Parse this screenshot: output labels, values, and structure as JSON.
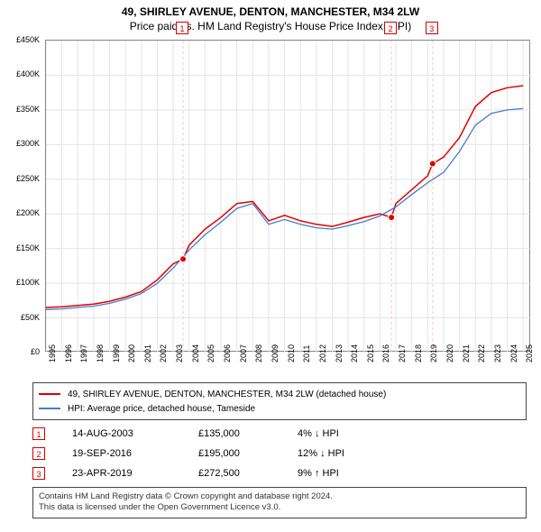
{
  "title_line1": "49, SHIRLEY AVENUE, DENTON, MANCHESTER, M34 2LW",
  "title_line2": "Price paid vs. HM Land Registry's House Price Index (HPI)",
  "chart": {
    "type": "line",
    "background_color": "#ffffff",
    "grid_color": "#e5e5e5",
    "border_color": "#888888",
    "x_years": [
      1995,
      1996,
      1997,
      1998,
      1999,
      2000,
      2001,
      2002,
      2003,
      2004,
      2005,
      2006,
      2007,
      2008,
      2009,
      2010,
      2011,
      2012,
      2013,
      2014,
      2015,
      2016,
      2017,
      2018,
      2019,
      2020,
      2021,
      2022,
      2023,
      2024,
      2025
    ],
    "xlim": [
      1995,
      2025.5
    ],
    "ylim": [
      0,
      450000
    ],
    "ytick_step": 50000,
    "yticks": [
      "£0",
      "£50K",
      "£100K",
      "£150K",
      "£200K",
      "£250K",
      "£300K",
      "£350K",
      "£400K",
      "£450K"
    ],
    "series": [
      {
        "name": "property",
        "label": "49, SHIRLEY AVENUE, DENTON, MANCHESTER, M34 2LW (detached house)",
        "color": "#e00000",
        "line_width": 1.5,
        "data": [
          [
            1995,
            65000
          ],
          [
            1996,
            66000
          ],
          [
            1997,
            68000
          ],
          [
            1998,
            70000
          ],
          [
            1999,
            74000
          ],
          [
            2000,
            80000
          ],
          [
            2001,
            88000
          ],
          [
            2002,
            105000
          ],
          [
            2003,
            128000
          ],
          [
            2003.62,
            135000
          ],
          [
            2004,
            155000
          ],
          [
            2005,
            178000
          ],
          [
            2006,
            195000
          ],
          [
            2007,
            215000
          ],
          [
            2008,
            218000
          ],
          [
            2009,
            190000
          ],
          [
            2010,
            198000
          ],
          [
            2011,
            190000
          ],
          [
            2012,
            185000
          ],
          [
            2013,
            182000
          ],
          [
            2014,
            188000
          ],
          [
            2015,
            195000
          ],
          [
            2016,
            200000
          ],
          [
            2016.72,
            195000
          ],
          [
            2017,
            215000
          ],
          [
            2018,
            235000
          ],
          [
            2019,
            255000
          ],
          [
            2019.31,
            272500
          ],
          [
            2019.5,
            275000
          ],
          [
            2020,
            282000
          ],
          [
            2021,
            310000
          ],
          [
            2022,
            355000
          ],
          [
            2023,
            375000
          ],
          [
            2024,
            382000
          ],
          [
            2025,
            385000
          ]
        ]
      },
      {
        "name": "hpi",
        "label": "HPI: Average price, detached house, Tameside",
        "color": "#4a7bc8",
        "line_width": 1.3,
        "data": [
          [
            1995,
            62000
          ],
          [
            1996,
            63000
          ],
          [
            1997,
            65000
          ],
          [
            1998,
            67000
          ],
          [
            1999,
            71000
          ],
          [
            2000,
            77000
          ],
          [
            2001,
            85000
          ],
          [
            2002,
            100000
          ],
          [
            2003,
            122000
          ],
          [
            2004,
            148000
          ],
          [
            2005,
            170000
          ],
          [
            2006,
            188000
          ],
          [
            2007,
            208000
          ],
          [
            2008,
            215000
          ],
          [
            2009,
            185000
          ],
          [
            2010,
            192000
          ],
          [
            2011,
            185000
          ],
          [
            2012,
            180000
          ],
          [
            2013,
            178000
          ],
          [
            2014,
            183000
          ],
          [
            2015,
            189000
          ],
          [
            2016,
            197000
          ],
          [
            2017,
            210000
          ],
          [
            2018,
            228000
          ],
          [
            2019,
            245000
          ],
          [
            2020,
            260000
          ],
          [
            2021,
            290000
          ],
          [
            2022,
            328000
          ],
          [
            2023,
            345000
          ],
          [
            2024,
            350000
          ],
          [
            2025,
            352000
          ]
        ]
      }
    ],
    "sale_markers": [
      {
        "n": "1",
        "year": 2003.62,
        "price": 135000,
        "vline_color": "#ffcccc"
      },
      {
        "n": "2",
        "year": 2016.72,
        "price": 195000,
        "vline_color": "#ffcccc"
      },
      {
        "n": "3",
        "year": 2019.31,
        "price": 272500,
        "vline_color": "#ffcccc"
      }
    ],
    "label_fontsize": 9
  },
  "legend": {
    "rows": [
      {
        "color": "#e00000",
        "text": "49, SHIRLEY AVENUE, DENTON, MANCHESTER, M34 2LW (detached house)"
      },
      {
        "color": "#4a7bc8",
        "text": "HPI: Average price, detached house, Tameside"
      }
    ]
  },
  "info_rows": [
    {
      "n": "1",
      "date": "14-AUG-2003",
      "price": "£135,000",
      "delta": "4% ↓ HPI"
    },
    {
      "n": "2",
      "date": "19-SEP-2016",
      "price": "£195,000",
      "delta": "12% ↓ HPI"
    },
    {
      "n": "3",
      "date": "23-APR-2019",
      "price": "£272,500",
      "delta": "9% ↑ HPI"
    }
  ],
  "footer_line1": "Contains HM Land Registry data © Crown copyright and database right 2024.",
  "footer_line2": "This data is licensed under the Open Government Licence v3.0."
}
